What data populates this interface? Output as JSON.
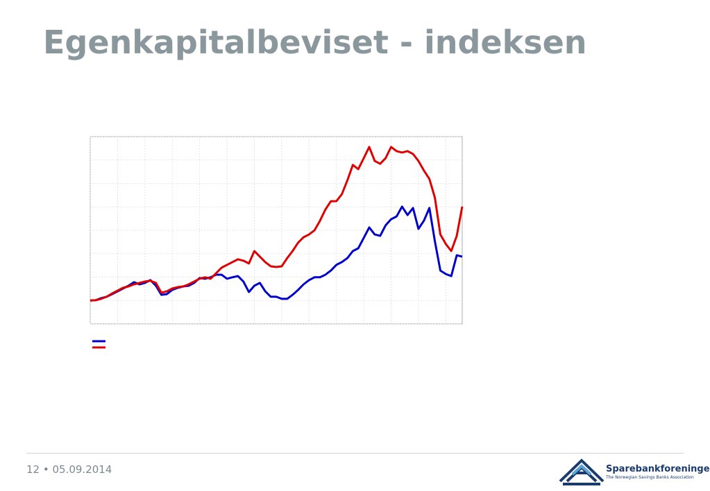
{
  "title": "Egenkapitalbeviset - indeksen",
  "footer": {
    "page": "12",
    "date": "05.09.2014"
  },
  "logo": {
    "name": "Sparebankforeningen",
    "tagline": "The Norwegian Savings Banks Association"
  },
  "chart_data": {
    "type": "line",
    "grid": true,
    "xlim": [
      0,
      68
    ],
    "xticks": [
      0,
      5,
      10,
      15,
      20,
      25,
      30,
      35,
      40,
      45,
      50,
      55,
      60,
      65
    ],
    "ylim": [
      0,
      8
    ],
    "yticks": [
      0,
      1,
      2,
      3,
      4,
      5,
      6,
      7,
      8
    ],
    "series": [
      {
        "color": "#0000cc",
        "values": [
          1.0,
          1.01,
          1.1,
          1.16,
          1.27,
          1.39,
          1.51,
          1.63,
          1.78,
          1.69,
          1.75,
          1.87,
          1.63,
          1.24,
          1.27,
          1.45,
          1.54,
          1.6,
          1.63,
          1.75,
          1.96,
          1.93,
          1.99,
          2.1,
          2.1,
          1.93,
          1.99,
          2.04,
          1.81,
          1.36,
          1.63,
          1.75,
          1.39,
          1.16,
          1.16,
          1.07,
          1.07,
          1.24,
          1.45,
          1.69,
          1.87,
          1.99,
          1.99,
          2.1,
          2.28,
          2.52,
          2.64,
          2.81,
          3.11,
          3.23,
          3.67,
          4.12,
          3.82,
          3.76,
          4.21,
          4.47,
          4.59,
          5.01,
          4.65,
          4.95,
          4.06,
          4.41,
          4.95,
          3.53,
          2.28,
          2.13,
          2.04,
          2.93,
          2.87
        ]
      },
      {
        "color": "#e00000",
        "values": [
          1.0,
          1.01,
          1.07,
          1.16,
          1.3,
          1.42,
          1.54,
          1.6,
          1.69,
          1.75,
          1.81,
          1.84,
          1.75,
          1.33,
          1.39,
          1.51,
          1.57,
          1.6,
          1.69,
          1.81,
          1.93,
          1.99,
          1.93,
          2.16,
          2.4,
          2.52,
          2.64,
          2.76,
          2.7,
          2.58,
          3.11,
          2.87,
          2.64,
          2.46,
          2.43,
          2.46,
          2.81,
          3.11,
          3.47,
          3.7,
          3.82,
          4.0,
          4.41,
          4.89,
          5.24,
          5.24,
          5.54,
          6.13,
          6.79,
          6.61,
          7.08,
          7.56,
          6.96,
          6.84,
          7.08,
          7.56,
          7.38,
          7.32,
          7.38,
          7.26,
          6.96,
          6.55,
          6.19,
          5.39,
          3.82,
          3.41,
          3.11,
          3.76,
          5.01
        ]
      }
    ]
  }
}
